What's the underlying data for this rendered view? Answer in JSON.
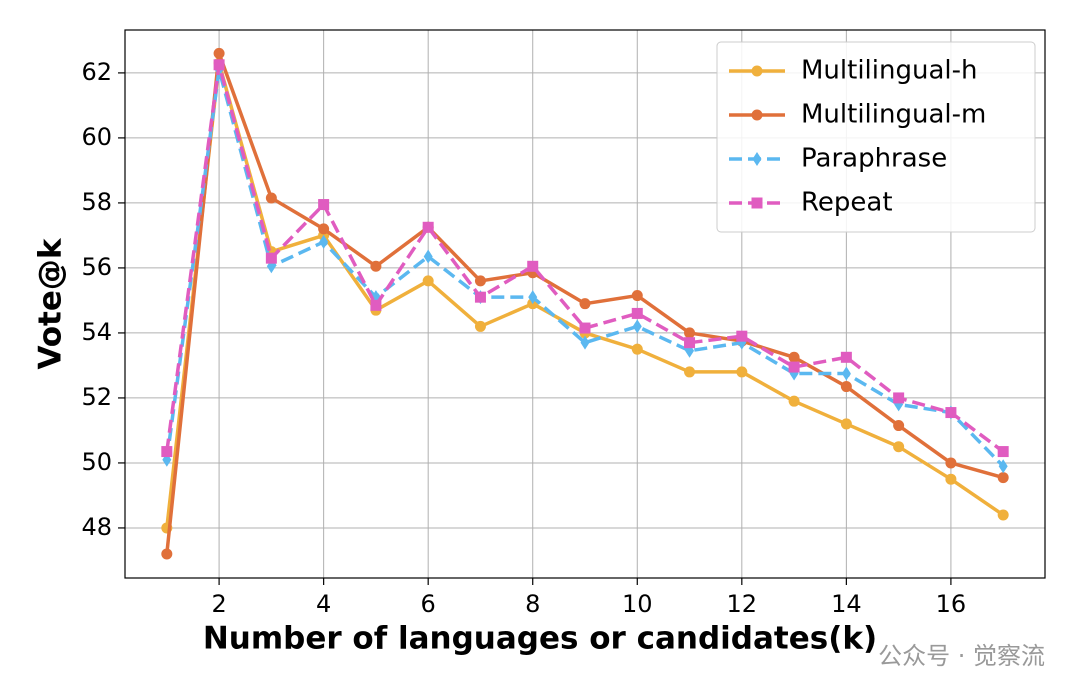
{
  "chart_data": {
    "type": "line",
    "xlabel": "Number of languages or candidates(k)",
    "ylabel": "Vote@k",
    "watermark": "公众号 · 觉察流",
    "x": [
      1,
      2,
      3,
      4,
      5,
      6,
      7,
      8,
      9,
      10,
      11,
      12,
      13,
      14,
      15,
      16,
      17
    ],
    "xlim": [
      0.2,
      17.8
    ],
    "xticks": [
      2,
      4,
      6,
      8,
      10,
      12,
      14,
      16
    ],
    "ylim": [
      46.46,
      63.32
    ],
    "yticks": [
      48,
      50,
      52,
      54,
      56,
      58,
      60,
      62
    ],
    "grid": true,
    "legend": "upper right",
    "series": [
      {
        "name": "Multilingual-h",
        "color": "#f0b03c",
        "linestyle": "solid",
        "marker": "circle",
        "values": [
          48.0,
          62.3,
          56.5,
          57.0,
          54.7,
          55.6,
          54.2,
          54.9,
          54.0,
          53.5,
          52.8,
          52.8,
          51.9,
          51.2,
          50.5,
          49.5,
          48.4
        ]
      },
      {
        "name": "Multilingual-m",
        "color": "#e0703a",
        "linestyle": "solid",
        "marker": "circle",
        "values": [
          47.2,
          62.6,
          58.15,
          57.2,
          56.05,
          57.25,
          55.6,
          55.85,
          54.9,
          55.15,
          54.0,
          53.75,
          53.25,
          52.35,
          51.15,
          50.0,
          49.55
        ]
      },
      {
        "name": "Paraphrase",
        "color": "#5bb8f0",
        "linestyle": "dashed",
        "marker": "diamond",
        "values": [
          50.1,
          62.1,
          56.05,
          56.8,
          55.1,
          56.35,
          55.1,
          55.1,
          53.7,
          54.2,
          53.45,
          53.7,
          52.75,
          52.75,
          51.8,
          51.55,
          49.9
        ]
      },
      {
        "name": "Repeat",
        "color": "#e05cc0",
        "linestyle": "dashed",
        "marker": "square",
        "values": [
          50.35,
          62.25,
          56.3,
          57.95,
          54.85,
          57.25,
          55.1,
          56.05,
          54.15,
          54.6,
          53.7,
          53.9,
          52.95,
          53.25,
          52.0,
          51.55,
          50.35
        ]
      }
    ]
  }
}
